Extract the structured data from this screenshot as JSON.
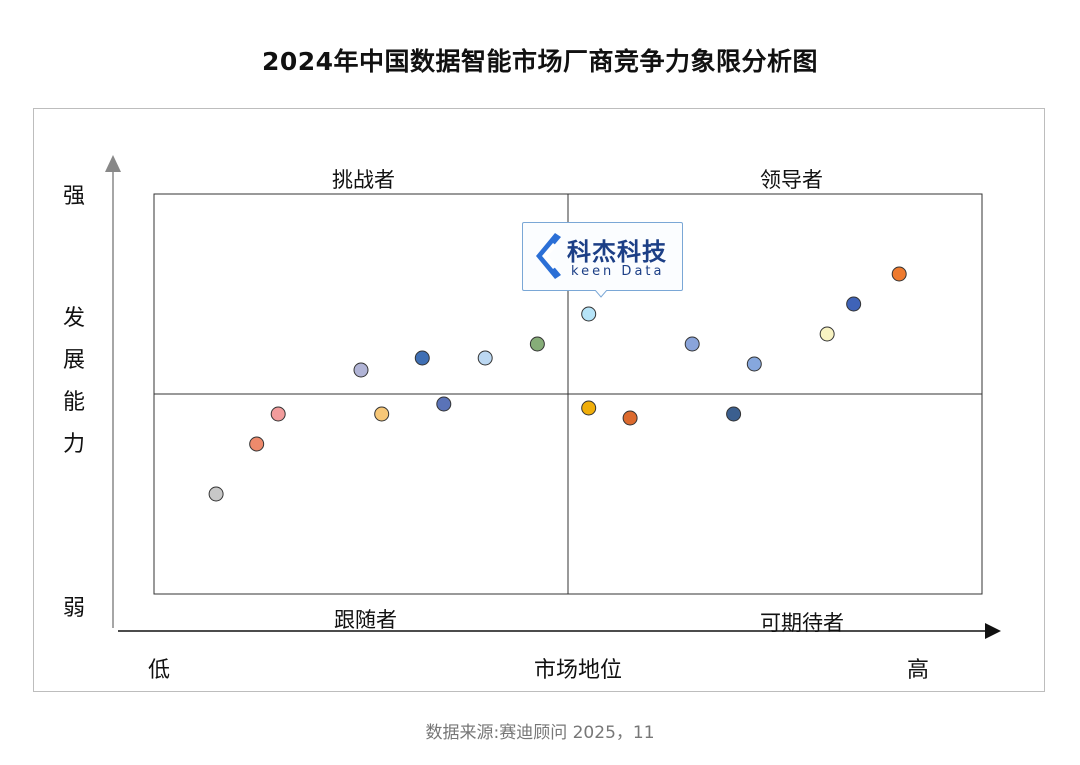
{
  "chart_data": {
    "type": "scatter",
    "title": "2024年中国数据智能市场厂商竞争力象限分析图",
    "xlabel": "市场地位",
    "x_low_label": "低",
    "x_high_label": "高",
    "ylabel_chars": [
      "发",
      "展",
      "能",
      "力"
    ],
    "y_high_label": "强",
    "y_low_label": "弱",
    "xlim": [
      0,
      100
    ],
    "ylim": [
      0,
      100
    ],
    "x_divider": 50,
    "y_divider": 50,
    "quadrants": {
      "top_left": "挑战者",
      "top_right": "领导者",
      "bottom_left": "跟随者",
      "bottom_right": "可期待者"
    },
    "points": [
      {
        "x": 7.5,
        "y": 25,
        "color": "#c8c8c8"
      },
      {
        "x": 12.4,
        "y": 37.5,
        "color": "#ee8a6c"
      },
      {
        "x": 15,
        "y": 45,
        "color": "#f29c9c"
      },
      {
        "x": 25,
        "y": 56,
        "color": "#b1b4d6"
      },
      {
        "x": 27.5,
        "y": 45,
        "color": "#f7c777"
      },
      {
        "x": 32.4,
        "y": 59,
        "color": "#3f6fb4"
      },
      {
        "x": 35,
        "y": 47.5,
        "color": "#5a73b8"
      },
      {
        "x": 40,
        "y": 59,
        "color": "#bcd8f2"
      },
      {
        "x": 46.3,
        "y": 62.5,
        "color": "#86ad78"
      },
      {
        "x": 52.5,
        "y": 70,
        "color": "#b6e4f8"
      },
      {
        "x": 52.5,
        "y": 46.5,
        "color": "#f0ae0a"
      },
      {
        "x": 57.5,
        "y": 44,
        "color": "#dc6a2e"
      },
      {
        "x": 65,
        "y": 62.5,
        "color": "#8aa4da"
      },
      {
        "x": 70,
        "y": 45,
        "color": "#3b5f8f"
      },
      {
        "x": 72.5,
        "y": 57.5,
        "color": "#86a7dd"
      },
      {
        "x": 81.3,
        "y": 65,
        "color": "#f8f3c2"
      },
      {
        "x": 84.5,
        "y": 72.5,
        "color": "#3f63b8"
      },
      {
        "x": 90,
        "y": 80,
        "color": "#ee7a2e"
      }
    ],
    "highlight_index": 9
  },
  "logo": {
    "cn": "科杰科技",
    "en": "keen Data",
    "color": "#1c3f86"
  },
  "source": "数据来源:赛迪顾问 2025，11"
}
